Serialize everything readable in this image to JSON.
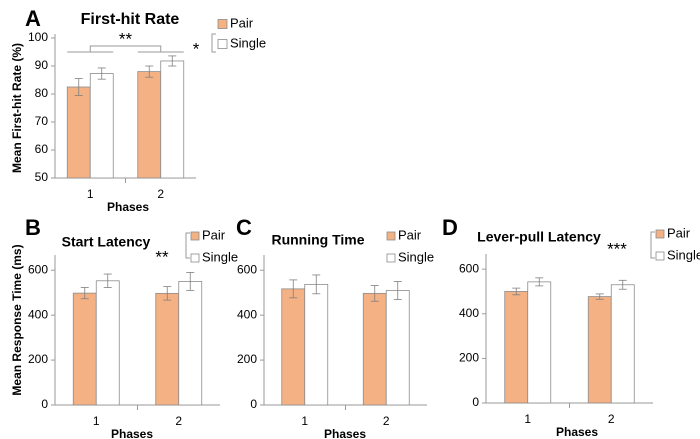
{
  "colors": {
    "pair": "#F4B183",
    "single": "#FFFFFF",
    "edge": "#8C8C8C",
    "axis": "#9A9A9A",
    "error": "#7F7F7F"
  },
  "shared_ylabel": "Mean Response Time (ms)",
  "chart_data": [
    {
      "panel": "A",
      "type": "bar",
      "title": "First-hit Rate",
      "ylabel": "Mean First-hit Rate (%)",
      "xlabel": "Phases",
      "categories": [
        "1",
        "2"
      ],
      "ylim": [
        50,
        100
      ],
      "yticks": [
        50,
        60,
        70,
        80,
        90,
        100
      ],
      "series": [
        {
          "name": "Pair",
          "values": [
            82.5,
            88.0
          ],
          "errors": [
            3.0,
            2.0
          ]
        },
        {
          "name": "Single",
          "values": [
            87.3,
            91.8
          ],
          "errors": [
            2.0,
            1.8
          ]
        }
      ],
      "annotations": {
        "phase_sig": "**",
        "group_sig": "*"
      }
    },
    {
      "panel": "B",
      "type": "bar",
      "title": "Start Latency",
      "xlabel": "Phases",
      "categories": [
        "1",
        "2"
      ],
      "ylim": [
        0,
        650
      ],
      "yticks": [
        0,
        200,
        400,
        600
      ],
      "series": [
        {
          "name": "Pair",
          "values": [
            498,
            497
          ],
          "errors": [
            25,
            30
          ]
        },
        {
          "name": "Single",
          "values": [
            553,
            550
          ],
          "errors": [
            30,
            40
          ]
        }
      ],
      "annotations": {
        "group_sig": "**"
      }
    },
    {
      "panel": "C",
      "type": "bar",
      "title": "Running Time",
      "xlabel": "Phases",
      "categories": [
        "1",
        "2"
      ],
      "ylim": [
        0,
        650
      ],
      "yticks": [
        0,
        200,
        400,
        600
      ],
      "series": [
        {
          "name": "Pair",
          "values": [
            517,
            497
          ],
          "errors": [
            40,
            35
          ]
        },
        {
          "name": "Single",
          "values": [
            537,
            510
          ],
          "errors": [
            42,
            40
          ]
        }
      ],
      "annotations": {
        "group_sig": ""
      }
    },
    {
      "panel": "D",
      "type": "bar",
      "title": "Lever-pull Latency",
      "xlabel": "Phases",
      "categories": [
        "1",
        "2"
      ],
      "ylim": [
        0,
        650
      ],
      "yticks": [
        0,
        200,
        400,
        600
      ],
      "series": [
        {
          "name": "Pair",
          "values": [
            500,
            477
          ],
          "errors": [
            15,
            12
          ]
        },
        {
          "name": "Single",
          "values": [
            543,
            530
          ],
          "errors": [
            18,
            20
          ]
        }
      ],
      "annotations": {
        "group_sig": "***"
      }
    }
  ]
}
